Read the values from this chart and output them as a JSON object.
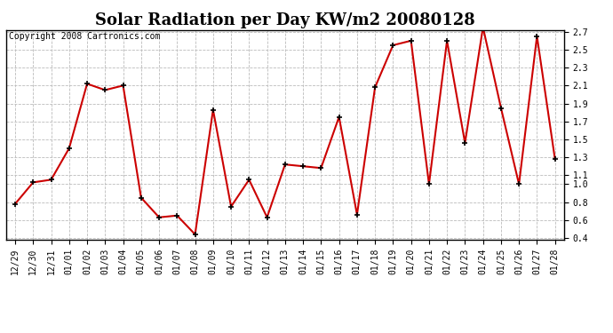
{
  "title": "Solar Radiation per Day KW/m2 20080128",
  "copyright_text": "Copyright 2008 Cartronics.com",
  "labels": [
    "12/29",
    "12/30",
    "12/31",
    "01/01",
    "01/02",
    "01/03",
    "01/04",
    "01/05",
    "01/06",
    "01/07",
    "01/08",
    "01/09",
    "01/10",
    "01/11",
    "01/12",
    "01/13",
    "01/14",
    "01/15",
    "01/16",
    "01/17",
    "01/18",
    "01/19",
    "01/20",
    "01/21",
    "01/22",
    "01/23",
    "01/24",
    "01/25",
    "01/26",
    "01/27",
    "01/28"
  ],
  "values": [
    0.78,
    1.02,
    1.05,
    1.4,
    2.12,
    2.05,
    2.1,
    0.85,
    0.63,
    0.65,
    0.44,
    1.83,
    0.75,
    1.05,
    0.63,
    1.22,
    1.2,
    1.18,
    1.75,
    0.66,
    2.08,
    2.55,
    2.6,
    1.0,
    2.6,
    1.46,
    2.75,
    1.85,
    1.0,
    2.65,
    1.28
  ],
  "ylim": [
    0.38,
    2.72
  ],
  "yticks": [
    0.4,
    0.6,
    0.8,
    1.0,
    1.1,
    1.3,
    1.5,
    1.7,
    1.9,
    2.1,
    2.3,
    2.5,
    2.7
  ],
  "ytick_labels": [
    "0.4",
    "0.6",
    "0.8",
    "1.0",
    "1.1",
    "1.3",
    "1.5",
    "1.7",
    "1.9",
    "2.1",
    "2.3",
    "2.5",
    "2.7"
  ],
  "line_color": "#cc0000",
  "marker": "+",
  "marker_color": "#000000",
  "bg_color": "#ffffff",
  "plot_bg_color": "#ffffff",
  "grid_color": "#bbbbbb",
  "title_fontsize": 13,
  "copyright_fontsize": 7,
  "tick_fontsize": 7,
  "fig_width": 6.9,
  "fig_height": 3.75,
  "dpi": 100
}
